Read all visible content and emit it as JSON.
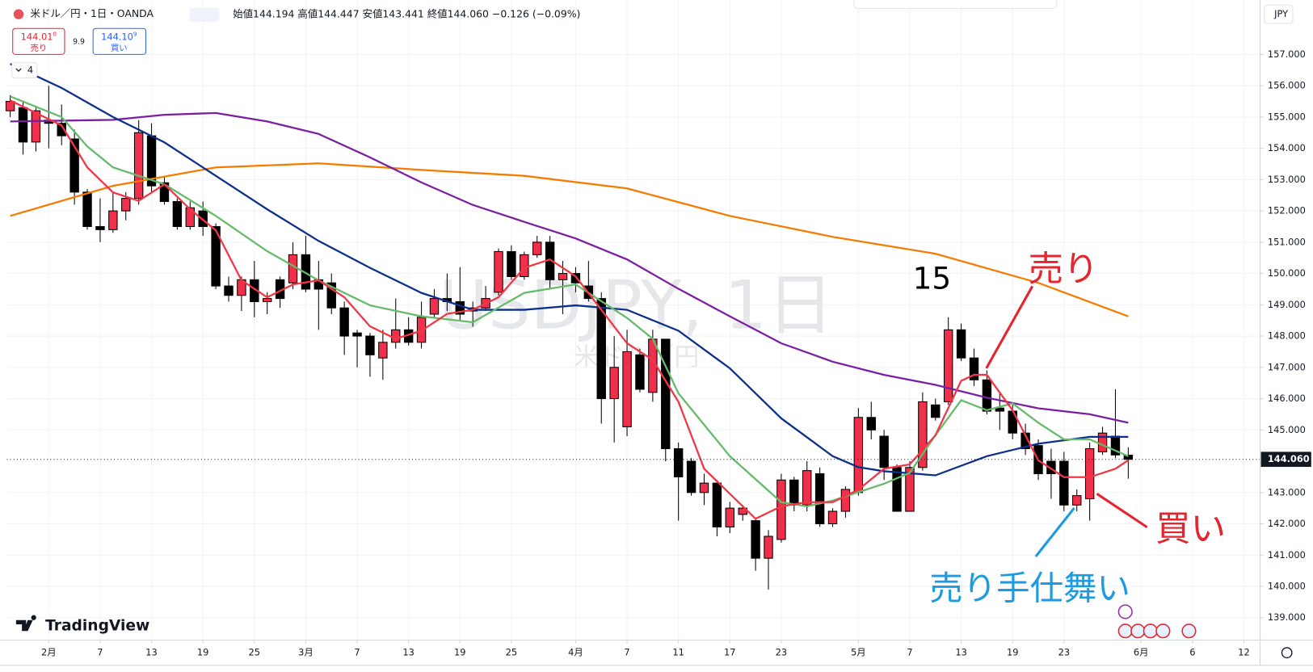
{
  "header": {
    "symbol": "米ドル／円・1日・OANDA",
    "open_label": "始値",
    "open": "144.194",
    "high_label": "高値",
    "high": "144.447",
    "low_label": "安値",
    "low": "143.441",
    "close_label": "終値",
    "close": "144.060",
    "change": "−0.126 (−0.09%)",
    "sell_price": "144.01",
    "sell_price_fraction": "0",
    "sell_label": "売り",
    "spread": "9.9",
    "buy_price": "144.10",
    "buy_price_fraction": "9",
    "buy_label": "買い",
    "indicator_count": "4",
    "currency": "JPY",
    "logo": "TradingView"
  },
  "chart_data": {
    "type": "candlestick",
    "watermark": "USDJPY, 1日",
    "watermark_subtitle": "米ドル／円",
    "up_color": "#f0304a",
    "down_color": "#000000",
    "open": [
      155.2,
      155.3,
      154.2,
      154.9,
      154.8,
      154.3,
      152.6,
      151.5,
      151.4,
      152.0,
      152.4,
      154.4,
      152.9,
      152.3,
      151.5,
      152.0,
      151.5,
      149.6,
      149.3,
      149.8,
      149.1,
      149.8,
      149.7,
      150.6,
      149.8,
      149.7,
      148.9,
      148.1,
      148.0,
      147.3,
      147.8,
      148.2,
      147.8,
      148.7,
      149.2,
      149.1,
      148.8,
      148.9,
      149.4,
      150.7,
      149.9,
      150.6,
      151.0,
      149.8,
      150.0,
      149.6,
      149.2,
      146.0,
      145.1,
      147.4,
      146.2,
      147.9,
      144.4,
      144.0,
      143.0,
      143.3,
      141.9,
      142.3,
      142.1,
      140.9,
      141.5,
      143.4,
      142.6,
      143.6,
      142.0,
      142.4,
      143.0,
      145.4,
      144.8,
      143.8,
      142.4,
      143.8,
      145.8,
      145.9,
      148.2,
      147.3,
      146.6,
      145.7,
      145.6,
      144.9,
      144.5,
      144.0,
      144.0,
      142.6,
      142.8,
      144.3,
      144.8,
      144.194
    ],
    "high": [
      155.7,
      155.5,
      155.3,
      156.0,
      155.4,
      154.6,
      152.7,
      152.4,
      152.6,
      152.6,
      154.9,
      154.8,
      153.1,
      152.4,
      152.3,
      152.3,
      151.6,
      149.9,
      149.9,
      150.4,
      149.4,
      149.9,
      151.0,
      151.2,
      150.4,
      150.0,
      149.1,
      148.2,
      148.1,
      148.2,
      149.2,
      148.6,
      149.1,
      149.5,
      150.0,
      150.2,
      149.1,
      149.6,
      150.8,
      150.9,
      150.7,
      151.2,
      151.2,
      150.4,
      150.2,
      150.4,
      149.4,
      148.0,
      148.2,
      147.6,
      148.2,
      147.9,
      144.6,
      144.1,
      143.6,
      143.4,
      142.7,
      142.6,
      142.2,
      141.8,
      143.6,
      143.5,
      144.0,
      143.8,
      142.5,
      143.2,
      145.7,
      145.9,
      145.0,
      143.9,
      144.0,
      146.2,
      146.0,
      148.6,
      148.4,
      147.6,
      146.9,
      146.2,
      145.8,
      145.2,
      144.7,
      144.4,
      144.3,
      143.1,
      144.6,
      145.1,
      146.3,
      144.447
    ],
    "low": [
      155.0,
      153.8,
      153.9,
      154.0,
      154.1,
      152.2,
      151.4,
      151.0,
      151.3,
      151.7,
      152.2,
      152.6,
      152.2,
      151.4,
      151.4,
      151.2,
      149.5,
      149.1,
      148.8,
      148.6,
      148.7,
      148.9,
      149.5,
      149.4,
      148.2,
      148.7,
      147.4,
      147.0,
      146.7,
      146.6,
      147.6,
      147.7,
      147.6,
      148.6,
      148.8,
      148.5,
      148.3,
      148.8,
      149.3,
      149.8,
      149.8,
      150.5,
      149.5,
      148.7,
      149.4,
      149.1,
      145.2,
      144.6,
      144.8,
      146.2,
      145.9,
      144.0,
      142.1,
      142.9,
      142.6,
      141.6,
      141.7,
      142.1,
      140.5,
      139.9,
      141.4,
      142.4,
      142.4,
      141.9,
      141.9,
      142.2,
      142.9,
      144.7,
      143.4,
      142.4,
      142.4,
      143.7,
      145.3,
      145.8,
      147.2,
      146.4,
      145.5,
      145.0,
      144.7,
      144.2,
      143.4,
      142.8,
      142.4,
      142.4,
      142.1,
      144.2,
      144.1,
      143.441
    ],
    "close": [
      155.5,
      154.2,
      155.2,
      154.8,
      154.4,
      152.6,
      151.5,
      151.4,
      152.0,
      152.4,
      154.5,
      152.8,
      152.3,
      151.5,
      152.1,
      151.5,
      149.6,
      149.3,
      149.8,
      149.1,
      149.2,
      149.2,
      150.6,
      149.5,
      149.5,
      148.9,
      148.0,
      148.0,
      147.4,
      147.8,
      148.2,
      147.8,
      148.6,
      149.2,
      149.1,
      148.7,
      148.9,
      149.2,
      150.7,
      149.9,
      150.6,
      151.0,
      149.8,
      150.0,
      149.7,
      149.2,
      146.0,
      147.0,
      147.5,
      146.3,
      147.9,
      144.4,
      143.5,
      143.0,
      143.3,
      141.9,
      142.5,
      142.5,
      140.9,
      141.6,
      143.4,
      142.6,
      143.7,
      142.0,
      142.4,
      143.1,
      145.4,
      145.0,
      143.8,
      142.4,
      143.8,
      145.9,
      145.4,
      148.2,
      147.3,
      146.6,
      145.6,
      145.6,
      144.9,
      144.4,
      143.6,
      143.6,
      142.6,
      142.9,
      144.4,
      144.9,
      144.2,
      144.06
    ],
    "moving_averages": [
      {
        "color": "#f57c00",
        "x": [
          0,
          8,
          16,
          24,
          32,
          40,
          48,
          56,
          64,
          72,
          80,
          87
        ],
        "values": [
          151.84,
          152.8,
          153.39,
          153.52,
          153.31,
          153.12,
          152.72,
          151.84,
          151.17,
          150.63,
          149.7,
          148.63
        ]
      },
      {
        "color": "#7b1fa2",
        "x": [
          0,
          8,
          12,
          16,
          20,
          24,
          28,
          32,
          36,
          40,
          44,
          48,
          52,
          56,
          60,
          64,
          68,
          72,
          76,
          80,
          84,
          87
        ],
        "values": [
          154.86,
          154.91,
          155.07,
          155.13,
          154.86,
          154.46,
          153.71,
          152.91,
          152.19,
          151.65,
          151.12,
          150.45,
          149.51,
          148.63,
          147.77,
          147.18,
          146.76,
          146.44,
          146.03,
          145.69,
          145.5,
          145.23
        ]
      },
      {
        "color": "#0d2f8c",
        "x": [
          0,
          4,
          8,
          12,
          16,
          20,
          24,
          28,
          32,
          36,
          40,
          44,
          48,
          52,
          56,
          60,
          64,
          66,
          68,
          72,
          76,
          80,
          84,
          87
        ],
        "values": [
          156.7,
          155.93,
          155.0,
          154.19,
          153.12,
          152.05,
          151.04,
          150.18,
          149.38,
          148.84,
          148.84,
          148.98,
          148.84,
          148.17,
          146.97,
          145.37,
          144.16,
          143.81,
          143.68,
          143.55,
          144.16,
          144.56,
          144.78,
          144.78
        ]
      },
      {
        "color": "#66bb6a",
        "x": [
          0,
          4,
          6,
          8,
          12,
          16,
          20,
          24,
          28,
          32,
          36,
          40,
          44,
          48,
          50,
          52,
          56,
          60,
          62,
          64,
          68,
          70,
          72,
          74,
          76,
          78,
          80,
          82,
          84,
          87
        ],
        "values": [
          155.66,
          155.0,
          154.06,
          153.39,
          152.85,
          151.84,
          150.71,
          149.78,
          148.98,
          148.63,
          148.44,
          149.38,
          149.65,
          148.58,
          147.91,
          146.17,
          144.16,
          142.69,
          142.56,
          142.74,
          143.28,
          143.63,
          144.83,
          145.95,
          145.63,
          145.85,
          145.23,
          144.7,
          144.7,
          144.16
        ]
      },
      {
        "color": "#f23645",
        "x": [
          0,
          4,
          6,
          8,
          10,
          12,
          14,
          16,
          18,
          20,
          22,
          24,
          26,
          28,
          30,
          32,
          34,
          36,
          38,
          40,
          42,
          44,
          46,
          48,
          50,
          52,
          54,
          56,
          58,
          60,
          62,
          64,
          66,
          68,
          70,
          72,
          74,
          75,
          76,
          78,
          80,
          82,
          84,
          86,
          87
        ],
        "values": [
          155.53,
          154.73,
          153.39,
          152.59,
          152.32,
          152.85,
          152.05,
          151.38,
          149.78,
          149.24,
          149.65,
          149.78,
          149.24,
          148.31,
          147.91,
          148.17,
          148.71,
          148.84,
          149.24,
          150.18,
          150.45,
          149.91,
          148.84,
          147.77,
          147.24,
          145.9,
          143.76,
          142.96,
          142.16,
          142.56,
          142.69,
          142.69,
          143.09,
          143.76,
          143.9,
          144.83,
          146.57,
          146.76,
          146.76,
          145.63,
          144.03,
          143.49,
          143.49,
          143.76,
          144.03
        ]
      }
    ],
    "price_line": {
      "value": 144.06,
      "label": "144.060"
    },
    "xlim": [
      -0.26,
      97.26
    ],
    "xticks": [
      {
        "value": 3,
        "label": "2月"
      },
      7,
      {
        "value": 11,
        "label": "13"
      },
      {
        "value": 15,
        "label": "19"
      },
      {
        "value": 19,
        "label": "25"
      },
      {
        "value": 23,
        "label": "3月"
      },
      {
        "value": 27,
        "label": "7"
      },
      {
        "value": 31,
        "label": "13"
      },
      {
        "value": 35,
        "label": "19"
      },
      {
        "value": 39,
        "label": "25"
      },
      {
        "value": 44,
        "label": "4月"
      },
      {
        "value": 48,
        "label": "7"
      },
      {
        "value": 52,
        "label": "11"
      },
      {
        "value": 56,
        "label": "17"
      },
      {
        "value": 60,
        "label": "23"
      },
      {
        "value": 66,
        "label": "5月"
      },
      {
        "value": 70,
        "label": "7"
      },
      {
        "value": 74,
        "label": "13"
      },
      {
        "value": 78,
        "label": "19"
      },
      {
        "value": 82,
        "label": "23"
      },
      {
        "value": 88,
        "label": "6月"
      },
      {
        "value": 92,
        "label": "6"
      },
      {
        "value": 96,
        "label": "12"
      }
    ],
    "ylim": [
      138.28,
      158.74
    ],
    "yticks": [
      {
        "value": 139,
        "label": "139.000"
      },
      {
        "value": 140,
        "label": "140.000"
      },
      {
        "value": 141,
        "label": "141.000"
      },
      {
        "value": 142,
        "label": "142.000"
      },
      {
        "value": 143,
        "label": "143.000"
      },
      {
        "value": 144,
        "label": "144.000"
      },
      {
        "value": 145,
        "label": "145.000"
      },
      {
        "value": 146,
        "label": "146.000"
      },
      {
        "value": 147,
        "label": "147.000"
      },
      {
        "value": 148,
        "label": "148.000"
      },
      {
        "value": 149,
        "label": "149.000"
      },
      {
        "value": 150,
        "label": "150.000"
      },
      {
        "value": 151,
        "label": "151.000"
      },
      {
        "value": 152,
        "label": "152.000"
      },
      {
        "value": 153,
        "label": "153.000"
      },
      {
        "value": 154,
        "label": "154.000"
      },
      {
        "value": 155,
        "label": "155.000"
      },
      {
        "value": 156,
        "label": "156.000"
      },
      {
        "value": 157,
        "label": "157.000"
      }
    ],
    "grid": true,
    "annotations": [
      {
        "text": "15",
        "color": "#000000"
      },
      {
        "text": "売り",
        "color": "#e3262e"
      },
      {
        "text": "買い",
        "color": "#e3262e"
      },
      {
        "text": "売り手仕舞い",
        "color": "#1e9be0"
      }
    ]
  }
}
